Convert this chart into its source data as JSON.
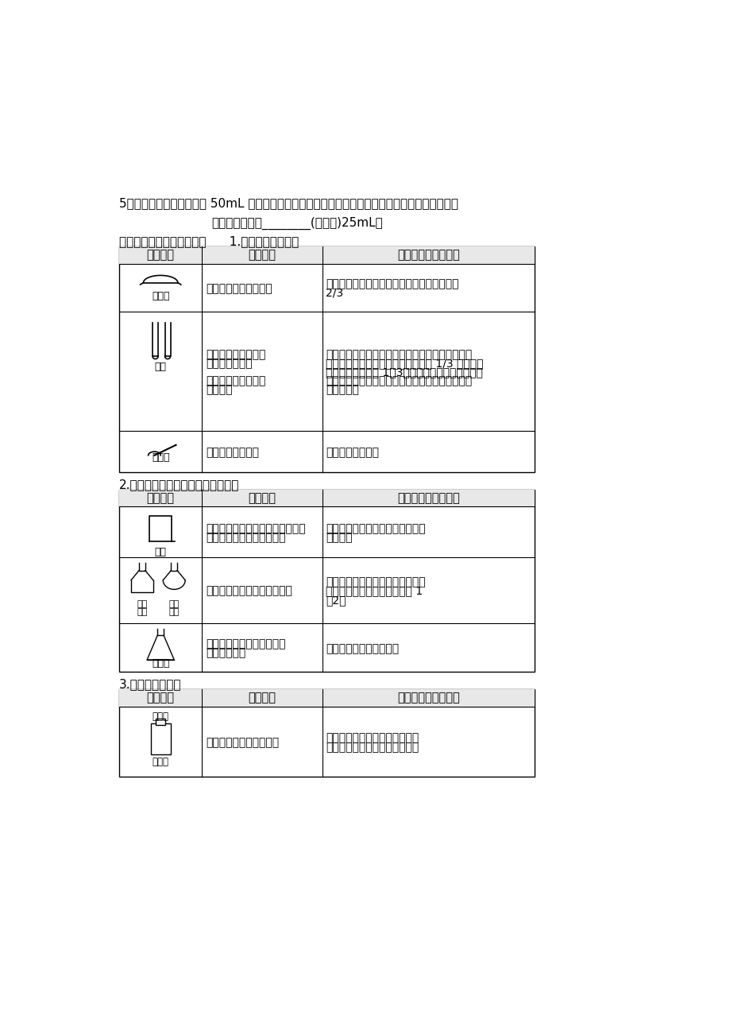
{
  "bg_color": "#ffffff",
  "intro_text1": "5、右图表示的是某同学用 50mL 量筒最取一定体积液体的操作。请你仔细观察该图，判断量筒内液",
  "intro_text2": "体的体积实际是________(＜或＞)25mL。",
  "intro_text3": "初中常见实验仪器附录表：      1.能直接加热的仪器",
  "table1_headers": [
    "仪器名称",
    "主要用途",
    "使用方法和注意事项"
  ],
  "table1_rows_col1": [
    "",
    "",
    ""
  ],
  "table1_rows_col2": [
    "用于蒸发或浓缩溶液。",
    "常用作反应器，也可\n收集少量气体。\n\n既可加热液体也可加\n热固体。",
    "燃烧少量固体物质"
  ],
  "table1_rows_col3": [
    "可直接加热，盛放的液体量一般应少于容积的\n2/3",
    "可直接加热，外壁有水时要擦干。加热时应用试管\n夹或固定在铁架台上，夹持在距管口 1/3 处。加热\n液体不超过容积的 1／3，试管口不能对着自己和别\n人，避免液体沸腾时喷出伤人。加热后不能骤冷，\n防止炸裂。",
    "可直接用于加热。"
  ],
  "table1_icons": [
    "蒸发皿",
    "试管",
    "燃烧匙"
  ],
  "section2_title": "2.能间接加热（需垫石棉网）的仪器",
  "table2_headers": [
    "仪器名称",
    "主要用途",
    "使用方法和注意事项"
  ],
  "table2_rows_col2": [
    "作配制、浓缩、稀释溶液。也可用\n作反应器等。用于液体加热",
    "用作反应器，可用于加热液体",
    "用作接受器、用作反应器等\n用于液体加热"
  ],
  "table2_rows_col3": [
    "加热时应放置在石棉网上，使之受\n热均匀。",
    "不能直接加热，加热时要垫石棉网\n所装液体的量不应超过其容积 1\n／2。",
    "一般放在石棉网上加热。"
  ],
  "table2_icons": [
    "烧杯",
    "平底烧瓶\n圆底烧瓶",
    "锥型瓶"
  ],
  "section3_title": "3.不能加热的仪器",
  "table3_headers": [
    "仪器名称",
    "主要用途",
    "使用方法及注意事项"
  ],
  "table3_rows_col2": [
    "用于收集和贮存少量气体"
  ],
  "table3_rows_col3": [
    "如果在其中进行燃烧反应且有固\n体生成时，应在底部加少量水或"
  ],
  "table3_icons": [
    "玻璃片\n集气瓶"
  ]
}
